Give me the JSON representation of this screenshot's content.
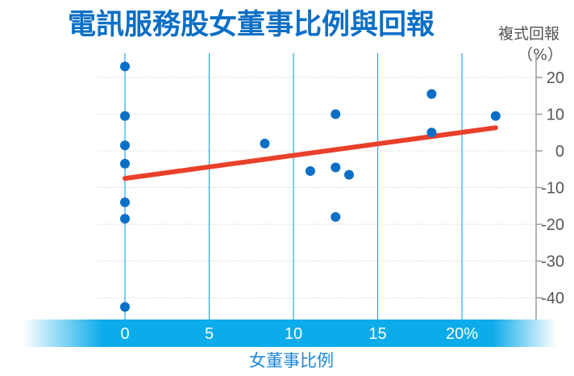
{
  "chart_data": {
    "type": "scatter",
    "title": "電訊服務股女董事比例與回報",
    "ylabel_line1": "複式回報",
    "ylabel_line2": "（%）",
    "xlabel": "女董事比例",
    "xlim": [
      0,
      22
    ],
    "ylim": [
      -40,
      20
    ],
    "x_ticks": [
      "0",
      "5",
      "10",
      "15",
      "20%"
    ],
    "x_tick_values": [
      0,
      5,
      10,
      15,
      20
    ],
    "y_ticks": [
      "20",
      "10",
      "0",
      "-10",
      "-20",
      "-30",
      "-40"
    ],
    "y_tick_values": [
      20,
      10,
      0,
      -10,
      -20,
      -30,
      -40
    ],
    "grid": "vertical lines at x ticks, dotted horizontal lines at y ticks",
    "points": [
      {
        "x": 0,
        "y": 23
      },
      {
        "x": 0,
        "y": 9.5
      },
      {
        "x": 0,
        "y": 1.5
      },
      {
        "x": 0,
        "y": -3.5
      },
      {
        "x": 0,
        "y": -14
      },
      {
        "x": 0,
        "y": -18.5
      },
      {
        "x": 0,
        "y": -42.5
      },
      {
        "x": 8.3,
        "y": 2
      },
      {
        "x": 11,
        "y": -5.5
      },
      {
        "x": 12.5,
        "y": 10
      },
      {
        "x": 12.5,
        "y": -4.5
      },
      {
        "x": 12.5,
        "y": -18
      },
      {
        "x": 13.3,
        "y": -6.5
      },
      {
        "x": 18.2,
        "y": 15.5
      },
      {
        "x": 18.2,
        "y": 5
      },
      {
        "x": 22,
        "y": 9.5
      }
    ],
    "trendline": {
      "x": [
        0,
        22
      ],
      "y": [
        -7.5,
        6.3
      ]
    },
    "colors": {
      "title": "#0b6fc6",
      "points": "#0b6fc6",
      "trendline": "#e8402a",
      "grid": "#29a9e8",
      "x_band": "#0cabe9",
      "x_tick_text": "#ffffff",
      "y_tick_text": "#555555",
      "xlabel": "#1d86d6"
    }
  }
}
